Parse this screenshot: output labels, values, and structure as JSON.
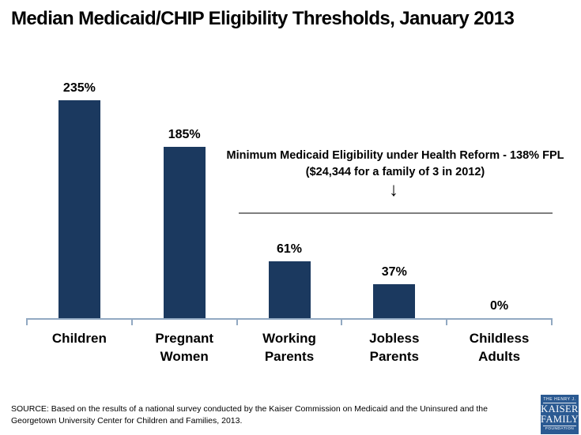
{
  "title": "Median Medicaid/CHIP Eligibility Thresholds, January 2013",
  "chart_data": {
    "type": "bar",
    "categories": [
      "Children",
      "Pregnant Women",
      "Working Parents",
      "Jobless Parents",
      "Childless Adults"
    ],
    "values": [
      235,
      185,
      61,
      37,
      0
    ],
    "value_labels": [
      "235%",
      "185%",
      "61%",
      "37%",
      "0%"
    ],
    "title": "Median Medicaid/CHIP Eligibility Thresholds, January 2013",
    "xlabel": "",
    "ylabel": "",
    "ylim": [
      0,
      235
    ],
    "grid": false,
    "legend": false,
    "bar_color": "#1B395F",
    "axis_color": "#92A9C2",
    "reference_line": {
      "value": 138,
      "label": "Minimum Medicaid Eligibility under Health Reform - 138% FPL ($24,344 for a family of 3 in 2012)",
      "color": "#7f7f7f"
    }
  },
  "annotation": {
    "line1": "Minimum Medicaid Eligibility under Health Reform - 138% FPL",
    "line2": "($24,344 for a family of 3 in 2012)",
    "arrow": "↓"
  },
  "source": {
    "line1": "SOURCE: Based on the results of a national survey conducted by the Kaiser Commission on Medicaid and the Uninsured and the",
    "line2": "Georgetown University Center for Children and Families, 2013."
  },
  "logo": {
    "top": "THE HENRY J.",
    "name1": "KAISER",
    "name2": "FAMILY",
    "bottom": "FOUNDATION",
    "bg_color": "#2B5A92"
  }
}
